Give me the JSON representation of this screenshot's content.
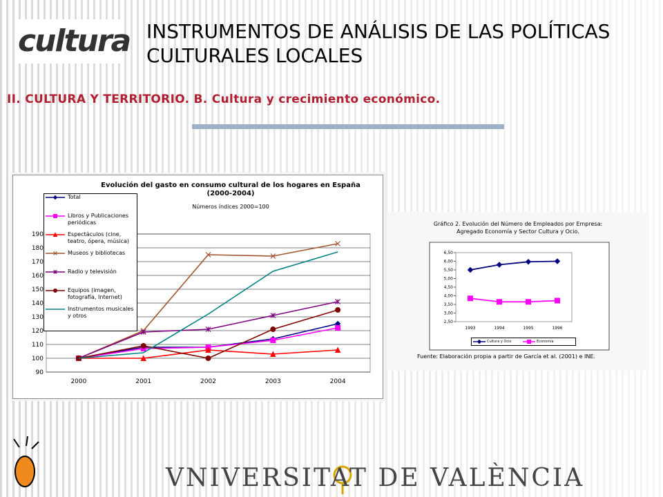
{
  "header": {
    "logo": "cultura",
    "title": "INSTRUMENTOS DE ANÁLISIS DE LAS POLÍTICAS CULTURALES LOCALES",
    "subtitle": "II. CULTURA Y TERRITORIO. B. Cultura y crecimiento económico."
  },
  "footer": {
    "university": "VNIVERSITAT DE VALÈNCIA"
  },
  "chart_data": [
    {
      "type": "line",
      "title": "Evolución del gasto en consumo cultural de los hogares en España (2000-2004)",
      "subtitle": "Números índices 2000=100",
      "categories": [
        "2000",
        "2001",
        "2002",
        "2003",
        "2004"
      ],
      "ylim": [
        90,
        190
      ],
      "yticks": [
        90,
        100,
        110,
        120,
        130,
        140,
        150,
        160,
        170,
        180,
        190
      ],
      "grid": true,
      "legend": "top-left",
      "series": [
        {
          "name": "Total",
          "color": "#000080",
          "marker": "diamond",
          "values": [
            100,
            108,
            108,
            114,
            125
          ]
        },
        {
          "name": "Libros y Publicaciones periódicas",
          "color": "#ff00ff",
          "marker": "square",
          "values": [
            100,
            107,
            108,
            113,
            122
          ]
        },
        {
          "name": "Espectáculos (cine, teatro, ópera, música)",
          "color": "#ff0000",
          "marker": "triangle",
          "values": [
            100,
            100,
            106,
            103,
            106
          ]
        },
        {
          "name": "Museos y bibliotecas",
          "color": "#a0522d",
          "marker": "x",
          "values": [
            100,
            120,
            175,
            174,
            183
          ]
        },
        {
          "name": "Radio y televisión",
          "color": "#800080",
          "marker": "star",
          "values": [
            100,
            119,
            121,
            131,
            141
          ]
        },
        {
          "name": "Equipos (imagen, fotografía, Internet)",
          "color": "#800000",
          "marker": "circle",
          "values": [
            100,
            109,
            100,
            121,
            135
          ]
        },
        {
          "name": "Instrumentos musicales y otros",
          "color": "#008080",
          "marker": "none",
          "values": [
            100,
            104,
            132,
            163,
            177
          ]
        }
      ]
    },
    {
      "type": "line",
      "title": "Gráfico 2. Evolución del Número de Empleados por Empresa: Agregado Economía y Sector Cultura y Ocio.",
      "source": "Fuente: Elaboración propia a partir de García et al. (2001) e INE.",
      "categories": [
        "1993",
        "1994",
        "1995",
        "1996"
      ],
      "ylim": [
        2.5,
        6.5
      ],
      "yticks": [
        {
          "value": 2.5,
          "label": "2,50"
        },
        {
          "value": 3,
          "label": "3,00"
        },
        {
          "value": 3.5,
          "label": "3,50"
        },
        {
          "value": 4,
          "label": "4,00"
        },
        {
          "value": 4.5,
          "label": "4,50"
        },
        {
          "value": 5,
          "label": "5,00"
        },
        {
          "value": 5.5,
          "label": "5,50"
        },
        {
          "value": 6,
          "label": "6,00"
        },
        {
          "value": 6.5,
          "label": "6,50"
        }
      ],
      "grid": false,
      "legend": "bottom",
      "series": [
        {
          "name": "Cultura y Ocio",
          "color": "#000080",
          "marker": "diamond",
          "values": [
            5.5,
            5.8,
            5.97,
            6.0
          ]
        },
        {
          "name": "Economía",
          "color": "#ff00ff",
          "marker": "square",
          "values": [
            3.85,
            3.65,
            3.65,
            3.72
          ]
        }
      ]
    }
  ]
}
